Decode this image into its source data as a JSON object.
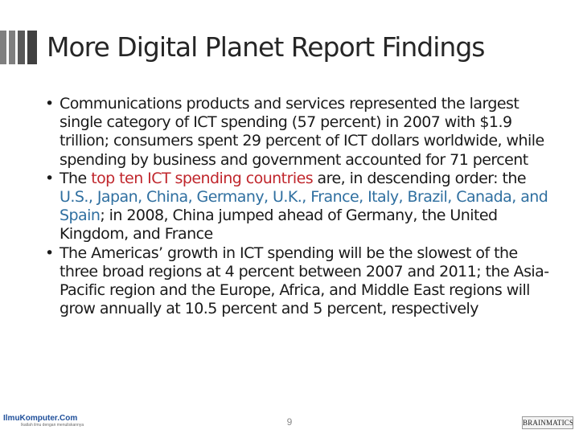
{
  "slide": {
    "title": "More Digital Planet Report Findings",
    "page_number": "9"
  },
  "bullets": [
    {
      "segments": [
        {
          "text": "Communications products and services represented the largest single category of ICT spending (57 percent) in 2007 with $1.9 trillion; consumers spent 29 percent of ICT dollars worldwide, while spending by business and government accounted for 71 percent"
        }
      ]
    },
    {
      "segments": [
        {
          "text": "The "
        },
        {
          "text": "top ten ICT spending countries",
          "highlight": "red"
        },
        {
          "text": " are, in descending order: the "
        },
        {
          "text": "U.S., Japan, China, Germany, U.K., France, Italy, Brazil, Canada, and Spain",
          "highlight": "blue"
        },
        {
          "text": "; in 2008, China jumped ahead of Germany, the United Kingdom, and France"
        }
      ]
    },
    {
      "segments": [
        {
          "text": "The Americas’ growth in ICT spending will be the slowest of the three broad regions at 4 percent between 2007 and 2011; the Asia-Pacific region and the Europe, Africa, and Middle East regions will grow annually at 10.5 percent and 5 percent, respectively"
        }
      ]
    }
  ],
  "footer": {
    "left_logo": "IlmuKomputer.Com",
    "left_logo_tagline": "Ikatlah ilmu dengan menuliskannya",
    "right_logo": "BRAINMATICS"
  }
}
